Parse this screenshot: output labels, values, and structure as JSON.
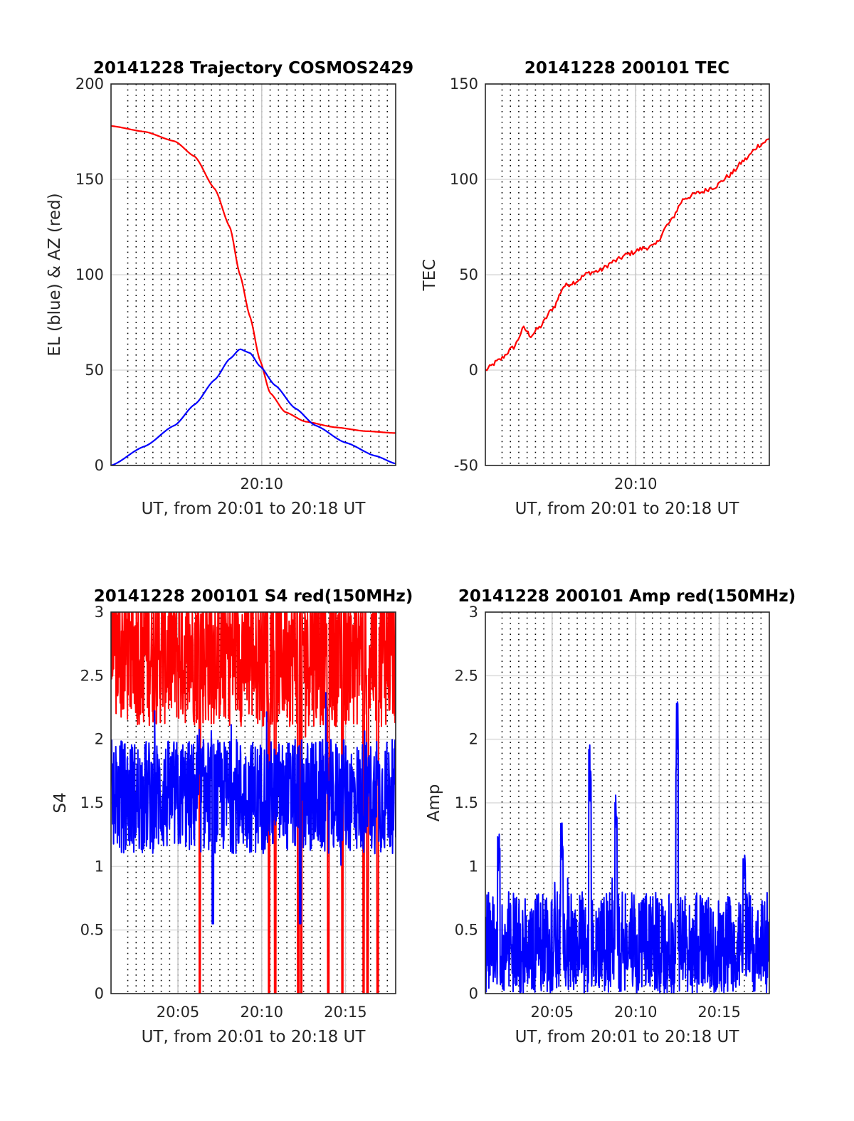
{
  "chart_data": [
    {
      "type": "line",
      "title": "20141228 Trajectory COSMOS2429",
      "xlabel": "UT, from 20:01 to 20:18 UT",
      "ylabel": "EL (blue) & AZ (red)",
      "xlim": [
        20.0167,
        20.3
      ],
      "ylim": [
        0,
        200
      ],
      "yticks": [
        "0",
        "50",
        "100",
        "150",
        "200"
      ],
      "xticks": [
        {
          "x": 20.1667,
          "label": "20:10"
        }
      ],
      "grid": true,
      "series": [
        {
          "color": "#ff0000",
          "x": [
            20.0167,
            20.05,
            20.08,
            20.1,
            20.12,
            20.135,
            20.145,
            20.155,
            20.165,
            20.175,
            20.19,
            20.21,
            20.24,
            20.27,
            20.3
          ],
          "values": [
            178,
            175,
            170,
            162,
            145,
            125,
            100,
            78,
            55,
            38,
            28,
            23,
            20,
            18,
            17
          ]
        },
        {
          "color": "#0000ff",
          "x": [
            20.0167,
            20.05,
            20.08,
            20.1,
            20.12,
            20.135,
            20.145,
            20.155,
            20.165,
            20.18,
            20.2,
            20.22,
            20.25,
            20.28,
            20.3
          ],
          "values": [
            0,
            10,
            21,
            32,
            45,
            56,
            61,
            59,
            52,
            42,
            30,
            21,
            12,
            5,
            1
          ]
        }
      ]
    },
    {
      "type": "line",
      "title": "20141228 200101 TEC",
      "xlabel": "UT, from 20:01 to 20:18 UT",
      "ylabel": "TEC",
      "xlim": [
        20.0167,
        20.3
      ],
      "ylim": [
        -50,
        150
      ],
      "yticks": [
        "-50",
        "0",
        "50",
        "100",
        "150"
      ],
      "xticks": [
        {
          "x": 20.1667,
          "label": "20:10"
        }
      ],
      "grid": true,
      "series": [
        {
          "color": "#ff0000",
          "x": [
            20.0167,
            20.03,
            20.045,
            20.055,
            20.062,
            20.07,
            20.085,
            20.095,
            20.105,
            20.12,
            20.13,
            20.145,
            20.16,
            20.175,
            20.185,
            20.2,
            20.215,
            20.23,
            20.245,
            20.26,
            20.275,
            20.29,
            20.3
          ],
          "values": [
            0,
            5,
            12,
            22,
            18,
            22,
            33,
            44,
            46,
            51,
            52,
            57,
            61,
            64,
            65,
            77,
            90,
            93,
            96,
            102,
            110,
            118,
            121
          ]
        }
      ]
    },
    {
      "type": "line",
      "title": "20141228 200101 S4 red(150MHz)",
      "xlabel": "UT, from 20:01 to 20:18 UT",
      "ylabel": "S4",
      "xlim": [
        20.0167,
        20.3
      ],
      "ylim": [
        0,
        3
      ],
      "yticks": [
        "0",
        "0.5",
        "1",
        "1.5",
        "2",
        "2.5",
        "3"
      ],
      "xticks": [
        {
          "x": 20.0833,
          "label": "20:05"
        },
        {
          "x": 20.1667,
          "label": "20:10"
        },
        {
          "x": 20.25,
          "label": "20:15"
        }
      ],
      "grid": true,
      "series": [
        {
          "color": "#ff0000",
          "noisy": true,
          "base": 2.7,
          "spread": 0.6,
          "clip": 3,
          "dips": [
            20.105,
            20.174,
            20.18,
            20.203,
            20.206,
            20.233,
            20.247,
            20.268,
            20.272,
            20.282
          ]
        },
        {
          "color": "#0000ff",
          "noisy": true,
          "base": 1.55,
          "spread": 0.45,
          "clip": 3,
          "dips": [
            20.118,
            20.205
          ]
        }
      ]
    },
    {
      "type": "line",
      "title": "20141228 200101 Amp red(150MHz)",
      "xlabel": "UT, from 20:01 to 20:18 UT",
      "ylabel": "Amp",
      "xlim": [
        20.0167,
        20.3
      ],
      "ylim": [
        0,
        3
      ],
      "yticks": [
        "0",
        "0.5",
        "1",
        "1.5",
        "2",
        "2.5",
        "3"
      ],
      "xticks": [
        {
          "x": 20.0833,
          "label": "20:05"
        },
        {
          "x": 20.1667,
          "label": "20:10"
        },
        {
          "x": 20.25,
          "label": "20:15"
        }
      ],
      "grid": true,
      "series": [
        {
          "color": "#0000ff",
          "noisy": true,
          "base": 0.55,
          "spread": 0.25,
          "peaks": [
            [
              20.121,
              2.0
            ],
            [
              20.147,
              1.6
            ],
            [
              20.208,
              2.3
            ],
            [
              20.03,
              1.28
            ],
            [
              20.093,
              1.35
            ],
            [
              20.275,
              1.15
            ]
          ]
        }
      ]
    }
  ]
}
